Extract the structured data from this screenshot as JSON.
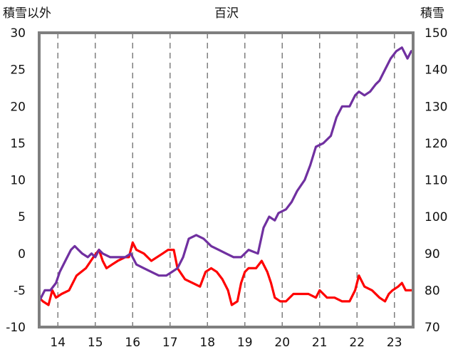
{
  "chart_data": {
    "type": "line",
    "title": "百沢",
    "left_axis_label": "積雪以外",
    "right_axis_label": "積雪",
    "x_ticks": [
      "14",
      "15",
      "16",
      "17",
      "18",
      "19",
      "20",
      "21",
      "22",
      "23"
    ],
    "x_range": [
      13.5,
      23.5
    ],
    "left_ylim": [
      -10,
      30
    ],
    "left_y_ticks": [
      "30",
      "25",
      "20",
      "15",
      "10",
      "5",
      "0",
      "-5",
      "-10"
    ],
    "right_ylim": [
      70,
      150
    ],
    "right_y_ticks": [
      "150",
      "140",
      "130",
      "120",
      "110",
      "100",
      "90",
      "80",
      "70"
    ],
    "grid": "vertical dashed lines at each x tick",
    "series": [
      {
        "axis": "left",
        "color": "#ff0000",
        "points": [
          [
            13.5,
            -6.0
          ],
          [
            13.6,
            -6.5
          ],
          [
            13.75,
            -7.0
          ],
          [
            13.85,
            -5.0
          ],
          [
            13.95,
            -6.0
          ],
          [
            14.1,
            -5.5
          ],
          [
            14.3,
            -5.0
          ],
          [
            14.5,
            -3.0
          ],
          [
            14.75,
            -2.0
          ],
          [
            14.95,
            -0.5
          ],
          [
            15.1,
            0.5
          ],
          [
            15.2,
            -1.0
          ],
          [
            15.3,
            -2.0
          ],
          [
            15.45,
            -1.5
          ],
          [
            15.6,
            -1.0
          ],
          [
            15.8,
            -0.5
          ],
          [
            15.9,
            -0.5
          ],
          [
            16.0,
            1.5
          ],
          [
            16.1,
            0.5
          ],
          [
            16.3,
            0.0
          ],
          [
            16.5,
            -1.0
          ],
          [
            16.65,
            -0.5
          ],
          [
            16.8,
            0.0
          ],
          [
            16.95,
            0.5
          ],
          [
            17.1,
            0.5
          ],
          [
            17.2,
            -2.0
          ],
          [
            17.4,
            -3.5
          ],
          [
            17.6,
            -4.0
          ],
          [
            17.8,
            -4.5
          ],
          [
            17.95,
            -2.5
          ],
          [
            18.1,
            -2.0
          ],
          [
            18.25,
            -2.5
          ],
          [
            18.4,
            -3.5
          ],
          [
            18.55,
            -5.0
          ],
          [
            18.65,
            -7.0
          ],
          [
            18.8,
            -6.5
          ],
          [
            18.9,
            -4.0
          ],
          [
            19.0,
            -2.5
          ],
          [
            19.1,
            -2.0
          ],
          [
            19.3,
            -2.0
          ],
          [
            19.45,
            -1.0
          ],
          [
            19.6,
            -2.5
          ],
          [
            19.7,
            -4.0
          ],
          [
            19.8,
            -6.0
          ],
          [
            19.95,
            -6.5
          ],
          [
            20.1,
            -6.5
          ],
          [
            20.3,
            -5.5
          ],
          [
            20.5,
            -5.5
          ],
          [
            20.7,
            -5.5
          ],
          [
            20.9,
            -6.0
          ],
          [
            21.0,
            -5.0
          ],
          [
            21.2,
            -6.0
          ],
          [
            21.4,
            -6.0
          ],
          [
            21.6,
            -6.5
          ],
          [
            21.8,
            -6.5
          ],
          [
            21.95,
            -5.0
          ],
          [
            22.05,
            -3.0
          ],
          [
            22.2,
            -4.5
          ],
          [
            22.4,
            -5.0
          ],
          [
            22.6,
            -6.0
          ],
          [
            22.75,
            -6.5
          ],
          [
            22.85,
            -5.5
          ],
          [
            22.95,
            -5.0
          ],
          [
            23.1,
            -4.5
          ],
          [
            23.2,
            -4.0
          ],
          [
            23.3,
            -5.0
          ],
          [
            23.4,
            -5.0
          ],
          [
            23.45,
            -5.0
          ]
        ]
      },
      {
        "axis": "right",
        "color": "#7030a0",
        "points": [
          [
            13.5,
            77
          ],
          [
            13.65,
            80
          ],
          [
            13.8,
            80
          ],
          [
            13.95,
            82
          ],
          [
            14.05,
            85
          ],
          [
            14.2,
            88
          ],
          [
            14.35,
            91
          ],
          [
            14.45,
            92
          ],
          [
            14.55,
            91
          ],
          [
            14.65,
            90
          ],
          [
            14.8,
            89
          ],
          [
            14.9,
            90
          ],
          [
            15.0,
            89
          ],
          [
            15.1,
            91
          ],
          [
            15.2,
            90
          ],
          [
            15.4,
            89
          ],
          [
            15.6,
            89
          ],
          [
            15.8,
            89
          ],
          [
            15.95,
            90
          ],
          [
            16.1,
            87
          ],
          [
            16.3,
            86
          ],
          [
            16.5,
            85
          ],
          [
            16.7,
            84
          ],
          [
            16.9,
            84
          ],
          [
            17.05,
            85
          ],
          [
            17.2,
            86
          ],
          [
            17.35,
            89
          ],
          [
            17.5,
            94
          ],
          [
            17.7,
            95
          ],
          [
            17.9,
            94
          ],
          [
            18.1,
            92
          ],
          [
            18.3,
            91
          ],
          [
            18.5,
            90
          ],
          [
            18.7,
            89
          ],
          [
            18.9,
            89
          ],
          [
            19.1,
            91
          ],
          [
            19.35,
            90
          ],
          [
            19.5,
            97
          ],
          [
            19.65,
            100
          ],
          [
            19.8,
            99
          ],
          [
            19.9,
            101
          ],
          [
            20.1,
            102
          ],
          [
            20.25,
            104
          ],
          [
            20.4,
            107
          ],
          [
            20.6,
            110
          ],
          [
            20.75,
            114
          ],
          [
            20.9,
            119
          ],
          [
            21.1,
            120
          ],
          [
            21.3,
            122
          ],
          [
            21.45,
            127
          ],
          [
            21.6,
            130
          ],
          [
            21.8,
            130
          ],
          [
            21.95,
            133
          ],
          [
            22.05,
            134
          ],
          [
            22.2,
            133
          ],
          [
            22.35,
            134
          ],
          [
            22.5,
            136
          ],
          [
            22.6,
            137
          ],
          [
            22.75,
            140
          ],
          [
            22.9,
            143
          ],
          [
            23.05,
            145
          ],
          [
            23.2,
            146
          ],
          [
            23.35,
            143
          ],
          [
            23.45,
            145
          ]
        ]
      }
    ]
  }
}
